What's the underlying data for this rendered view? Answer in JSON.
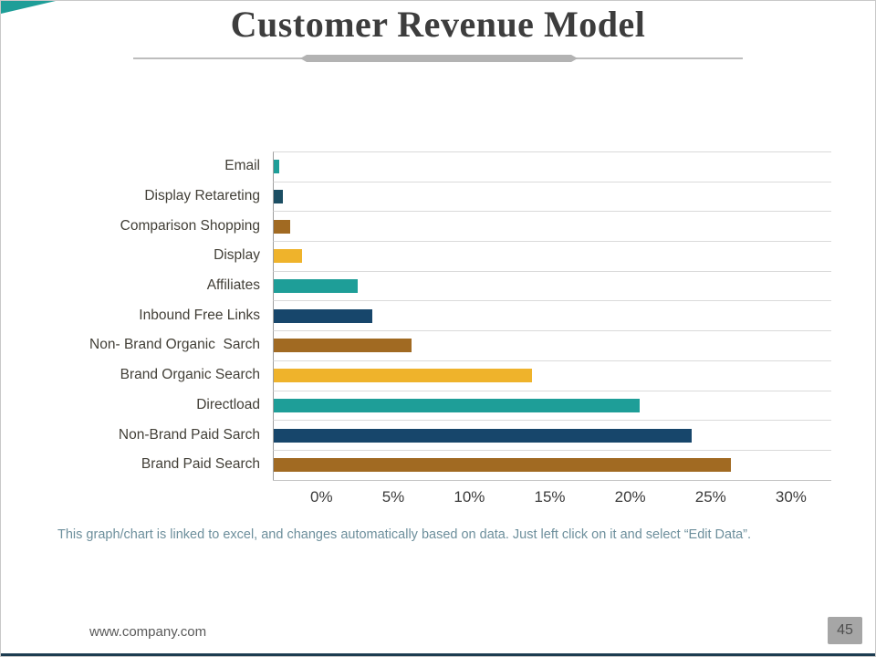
{
  "slide": {
    "title": "Customer Revenue Model",
    "caption": "This graph/chart is linked to excel, and changes automatically based on data. Just left click on it and select “Edit Data”.",
    "footer": {
      "website": "www.company.com",
      "page_number": "45"
    }
  },
  "colors": {
    "accent_teal": "#1E9E98",
    "accent_navy": "#17466B",
    "accent_brown": "#A16A22",
    "accent_gold": "#EFB32B",
    "gridline": "#dadada",
    "bottom_border": "#1c3c50"
  },
  "chart_data": {
    "type": "bar",
    "orientation": "horizontal",
    "title": "Customer Revenue Model",
    "xlabel": "",
    "ylabel": "",
    "xlim": [
      0,
      30
    ],
    "x_ticks": [
      "0%",
      "5%",
      "10%",
      "15%",
      "20%",
      "25%",
      "30%"
    ],
    "grid": "on",
    "legend": "none",
    "categories": [
      "Email",
      "Display Retareting",
      "Comparison Shopping",
      "Display",
      "Affiliates",
      "Inbound Free Links",
      "Non- Brand Organic  Sarch",
      "Brand Organic Search",
      "Directload",
      "Non-Brand Paid Sarch",
      "Brand Paid Search"
    ],
    "values": [
      0.3,
      0.5,
      0.9,
      1.5,
      4.5,
      5.3,
      7.4,
      13.9,
      19.7,
      22.5,
      24.6
    ],
    "bar_colors": [
      "#1E9E98",
      "#1C4E63",
      "#A16A22",
      "#EFB32B",
      "#1E9E98",
      "#17466B",
      "#A16A22",
      "#EFB32B",
      "#1E9E98",
      "#17466B",
      "#A16A22"
    ]
  }
}
